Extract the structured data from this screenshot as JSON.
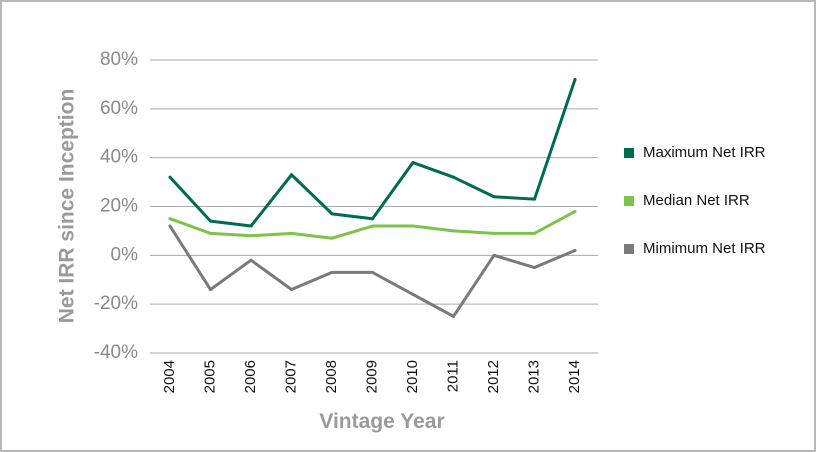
{
  "chart_data": {
    "type": "line",
    "title": "",
    "xlabel": "Vintage Year",
    "ylabel": "Net IRR since Inception",
    "categories": [
      "2004",
      "2005",
      "2006",
      "2007",
      "2008",
      "2009",
      "2010",
      "2011",
      "2012",
      "2013",
      "2014"
    ],
    "y_ticks": [
      "80%",
      "60%",
      "40%",
      "20%",
      "0%",
      "-20%",
      "-40%"
    ],
    "ylim": [
      -40,
      80
    ],
    "grid": true,
    "legend_position": "right",
    "series": [
      {
        "name": "Maximum Net IRR",
        "color": "#006b4f",
        "values": [
          32,
          14,
          12,
          33,
          17,
          15,
          38,
          32,
          24,
          23,
          72
        ]
      },
      {
        "name": "Median Net IRR",
        "color": "#7dc24a",
        "values": [
          15,
          9,
          8,
          9,
          7,
          12,
          12,
          10,
          9,
          9,
          18
        ]
      },
      {
        "name": "Mimimum Net IRR",
        "color": "#7a7a7a",
        "values": [
          12,
          -14,
          -2,
          -14,
          -7,
          -7,
          -16,
          -25,
          0,
          -5,
          2
        ]
      }
    ]
  }
}
